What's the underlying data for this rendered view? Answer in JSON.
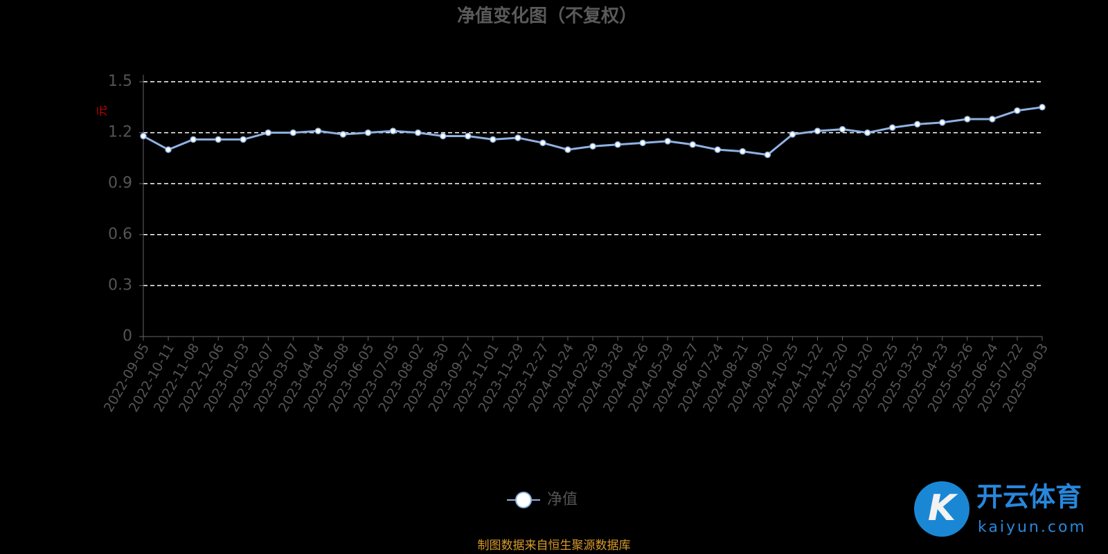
{
  "chart_data": {
    "type": "line",
    "title": "净值变化图（不复权）",
    "y_label": "元",
    "categories": [
      "2022-09-05",
      "2022-10-11",
      "2022-11-08",
      "2022-12-06",
      "2023-01-03",
      "2023-02-07",
      "2023-03-07",
      "2023-04-04",
      "2023-05-08",
      "2023-06-05",
      "2023-07-05",
      "2023-08-02",
      "2023-08-30",
      "2023-09-27",
      "2023-11-01",
      "2023-11-29",
      "2023-12-27",
      "2024-01-24",
      "2024-02-29",
      "2024-03-28",
      "2024-04-26",
      "2024-05-29",
      "2024-06-27",
      "2024-07-24",
      "2024-08-21",
      "2024-09-20",
      "2024-10-25",
      "2024-11-22",
      "2024-12-20",
      "2025-01-20",
      "2025-02-25",
      "2025-03-25",
      "2025-04-23",
      "2025-05-26",
      "2025-06-24",
      "2025-07-22",
      "2025-09-03"
    ],
    "series": [
      {
        "name": "净值",
        "color": "#8fb2e2",
        "values": [
          1.18,
          1.1,
          1.16,
          1.16,
          1.16,
          1.2,
          1.2,
          1.21,
          1.19,
          1.2,
          1.21,
          1.2,
          1.18,
          1.18,
          1.16,
          1.17,
          1.14,
          1.1,
          1.12,
          1.13,
          1.14,
          1.15,
          1.13,
          1.1,
          1.09,
          1.07,
          1.19,
          1.21,
          1.22,
          1.2,
          1.23,
          1.25,
          1.26,
          1.28,
          1.28,
          1.33,
          1.35
        ]
      }
    ],
    "ylim": [
      0,
      1.5
    ],
    "yticks": [
      0,
      0.3,
      0.6,
      0.9,
      1.2,
      1.5
    ],
    "grid": true,
    "source": "制图数据来自恒生聚源数据库",
    "watermark": {
      "brand": "开云体育",
      "domain": "kaiyun.com"
    }
  }
}
